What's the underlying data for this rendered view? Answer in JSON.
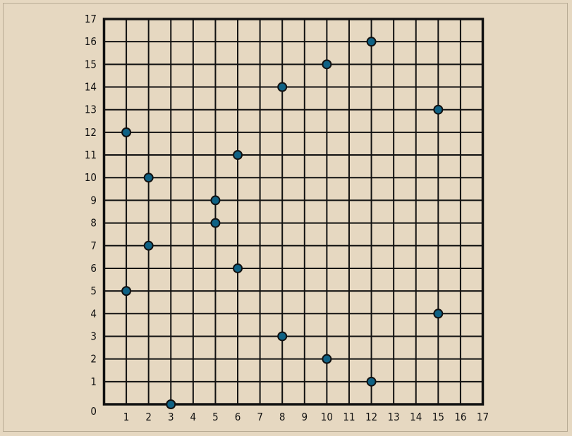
{
  "chart_data": {
    "type": "scatter",
    "title": "",
    "xlabel": "",
    "ylabel": "",
    "xlim": [
      0,
      17
    ],
    "ylim": [
      0,
      17
    ],
    "x_ticks": [
      "1",
      "2",
      "3",
      "4",
      "5",
      "6",
      "7",
      "8",
      "9",
      "10",
      "11",
      "12",
      "13",
      "14",
      "15",
      "16",
      "17"
    ],
    "y_ticks": [
      "0",
      "1",
      "2",
      "3",
      "4",
      "5",
      "6",
      "7",
      "8",
      "9",
      "10",
      "11",
      "12",
      "13",
      "14",
      "15",
      "16",
      "17"
    ],
    "grid": true,
    "points": [
      {
        "x": 1,
        "y": 12
      },
      {
        "x": 1,
        "y": 5
      },
      {
        "x": 2,
        "y": 10
      },
      {
        "x": 2,
        "y": 7
      },
      {
        "x": 3,
        "y": 0
      },
      {
        "x": 5,
        "y": 9
      },
      {
        "x": 5,
        "y": 8
      },
      {
        "x": 6,
        "y": 11
      },
      {
        "x": 6,
        "y": 6
      },
      {
        "x": 8,
        "y": 14
      },
      {
        "x": 8,
        "y": 3
      },
      {
        "x": 10,
        "y": 15
      },
      {
        "x": 10,
        "y": 2
      },
      {
        "x": 12,
        "y": 16
      },
      {
        "x": 12,
        "y": 1
      },
      {
        "x": 15,
        "y": 13
      },
      {
        "x": 15,
        "y": 4
      }
    ],
    "colors": {
      "background": "#e6d8c1",
      "grid": "#111111",
      "point_fill": "#0f6285",
      "point_stroke": "#111111"
    }
  }
}
